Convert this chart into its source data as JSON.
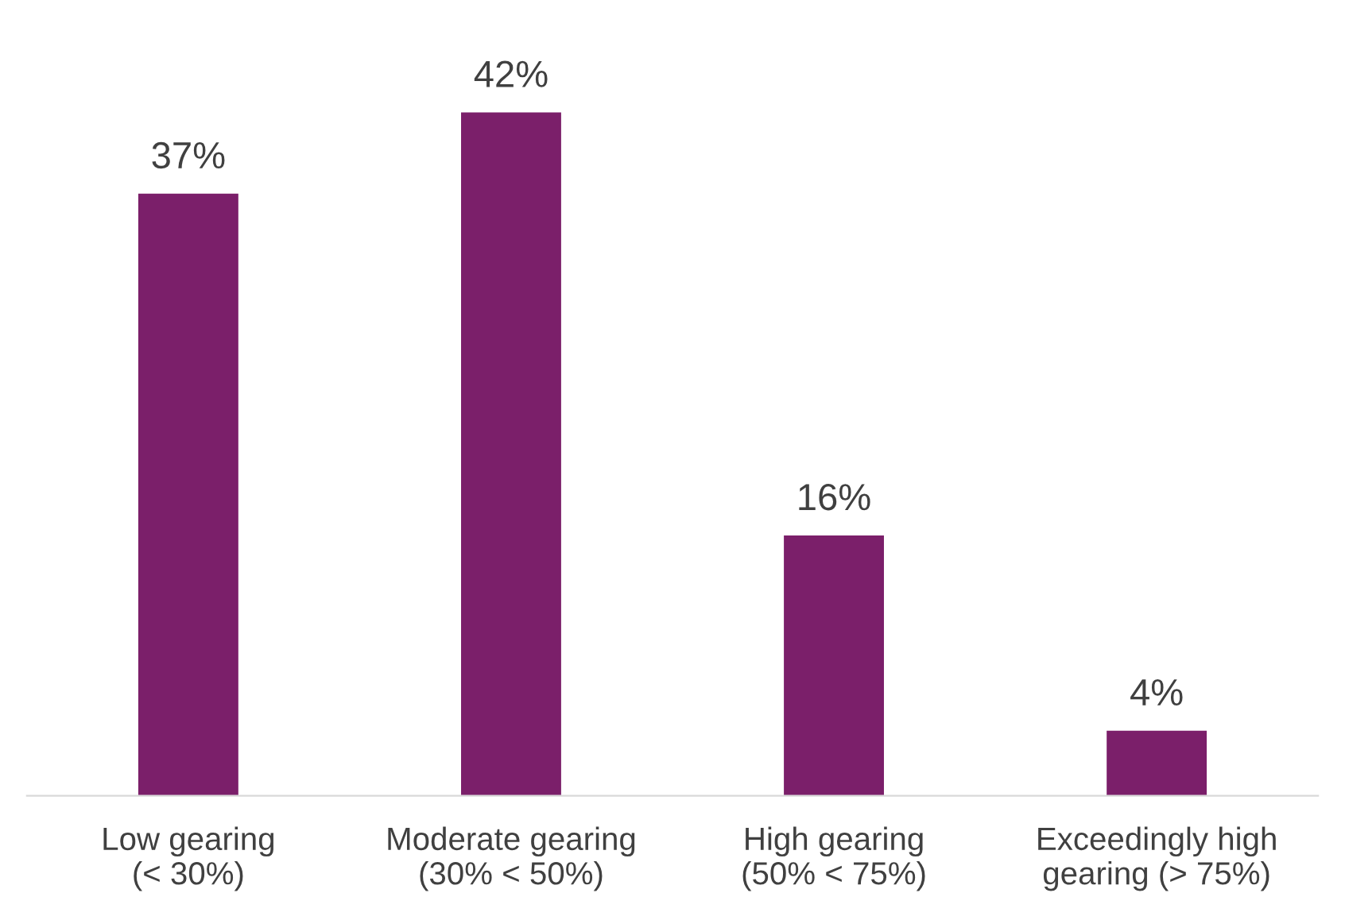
{
  "chart_data": {
    "type": "bar",
    "categories": [
      "Low gearing (< 30%)",
      "Moderate gearing (30% < 50%)",
      "High gearing (50% < 75%)",
      "Exceedingly high gearing (> 75%)"
    ],
    "values": [
      37,
      42,
      16,
      4
    ],
    "value_labels": [
      "37%",
      "42%",
      "16%",
      "4%"
    ],
    "color": "#7b1f6a",
    "grid": false,
    "legend": false
  }
}
